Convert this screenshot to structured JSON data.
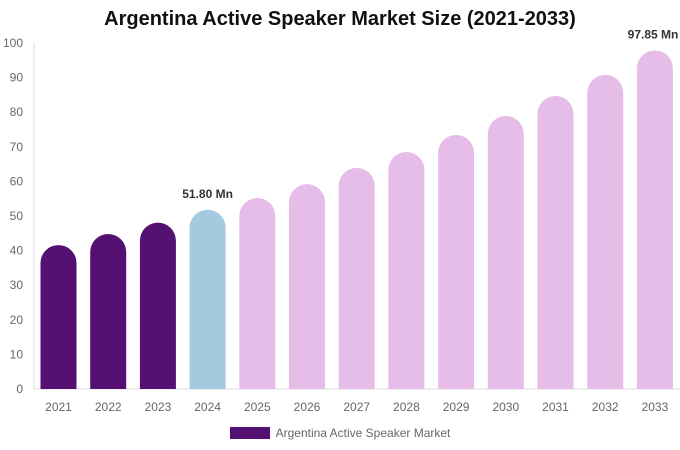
{
  "chart_data": {
    "type": "bar",
    "title": "Argentina Active Speaker Market Size (2021-2033)",
    "categories": [
      "2021",
      "2022",
      "2023",
      "2024",
      "2025",
      "2026",
      "2027",
      "2028",
      "2029",
      "2030",
      "2031",
      "2032",
      "2033"
    ],
    "series": [
      {
        "name": "Argentina Active Speaker Market",
        "values": [
          41.6,
          44.8,
          48.1,
          51.8,
          55.2,
          59.2,
          63.9,
          68.5,
          73.4,
          78.9,
          84.7,
          90.8,
          97.85
        ]
      }
    ],
    "bar_colors": [
      "#541172",
      "#541172",
      "#541172",
      "#a3cade",
      "#e6bce8",
      "#e6bce8",
      "#e6bce8",
      "#e6bce8",
      "#e6bce8",
      "#e6bce8",
      "#e6bce8",
      "#e6bce8",
      "#e6bce8"
    ],
    "data_labels": [
      {
        "category": "2024",
        "text": "51.80 Mn"
      },
      {
        "category": "2033",
        "text": "97.85 Mn"
      }
    ],
    "ylim": [
      0,
      100
    ],
    "yticks": [
      0,
      10,
      20,
      30,
      40,
      50,
      60,
      70,
      80,
      90,
      100
    ],
    "grid": false,
    "legend": "bottom",
    "xlabel": "",
    "ylabel": ""
  }
}
